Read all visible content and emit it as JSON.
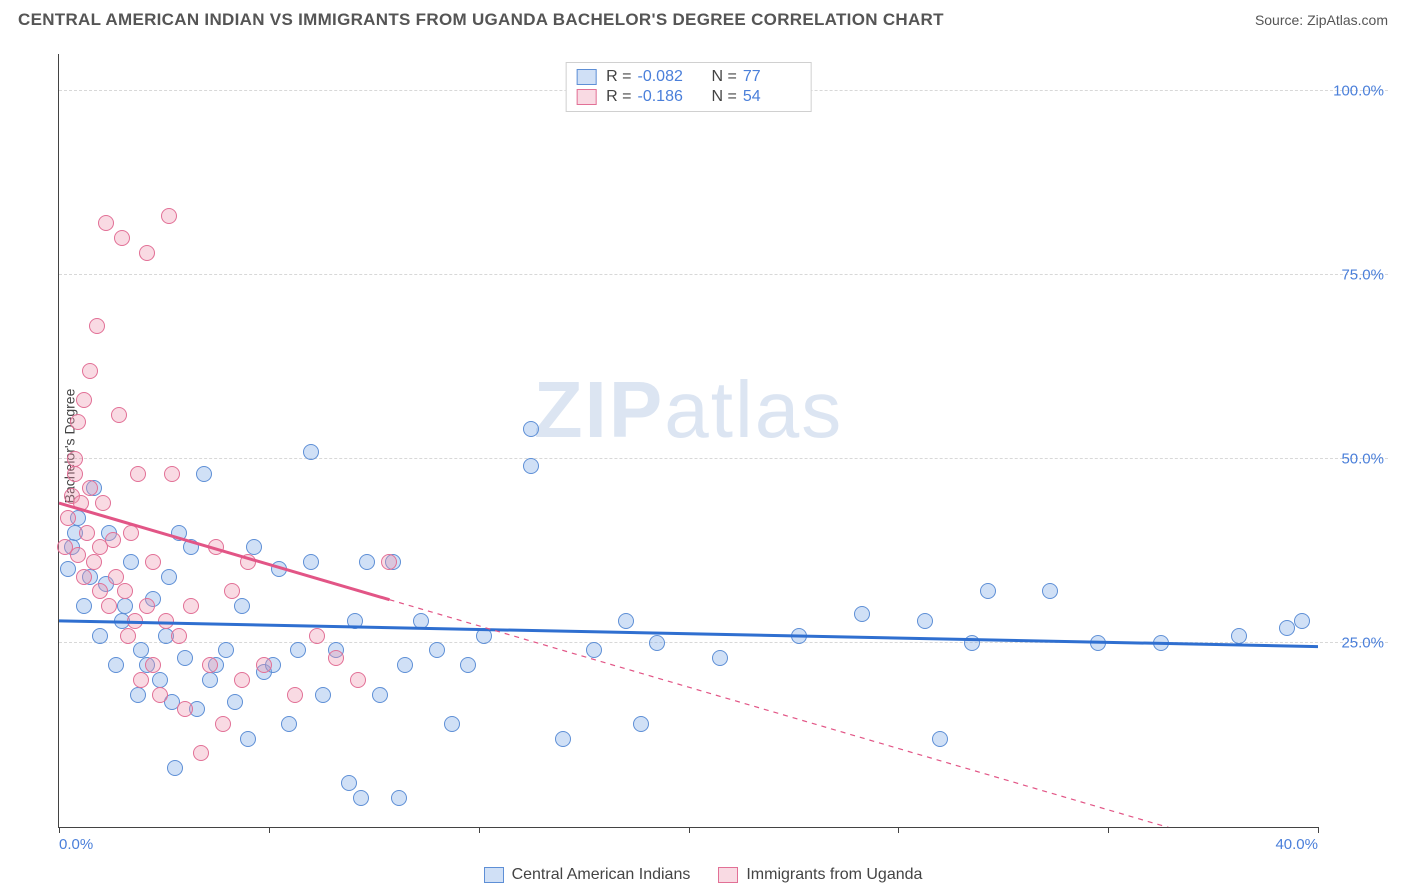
{
  "header": {
    "title": "CENTRAL AMERICAN INDIAN VS IMMIGRANTS FROM UGANDA BACHELOR'S DEGREE CORRELATION CHART",
    "source": "Source: ZipAtlas.com"
  },
  "watermark": {
    "bold": "ZIP",
    "rest": "atlas"
  },
  "chart": {
    "type": "scatter",
    "ylabel": "Bachelor's Degree",
    "background_color": "#ffffff",
    "grid_color": "#d8d8d8",
    "axis_color": "#434343",
    "tick_label_color": "#4a7fda",
    "xlim": [
      0,
      40
    ],
    "ylim": [
      0,
      105
    ],
    "xticks": [
      0,
      6.67,
      13.33,
      20,
      26.67,
      33.33,
      40
    ],
    "xtick_labels": [
      "0.0%",
      "",
      "",
      "",
      "",
      "",
      "40.0%"
    ],
    "ygrid": [
      {
        "y": 25,
        "label": "25.0%"
      },
      {
        "y": 50,
        "label": "50.0%"
      },
      {
        "y": 75,
        "label": "75.0%"
      },
      {
        "y": 100,
        "label": "100.0%"
      }
    ],
    "marker_radius": 8,
    "marker_border_width": 1.5,
    "series": [
      {
        "key": "cai",
        "label": "Central American Indians",
        "fill": "rgba(121,167,230,0.35)",
        "stroke": "#5e8fd6",
        "trend": {
          "color": "#2f6fd0",
          "width": 3,
          "y_at_x0": 28,
          "y_at_xmax": 24.5,
          "solid_until_x": 40
        },
        "stats": {
          "R": "-0.082",
          "N": "77"
        },
        "points": [
          [
            0.3,
            35
          ],
          [
            0.4,
            38
          ],
          [
            0.5,
            40
          ],
          [
            0.6,
            42
          ],
          [
            0.8,
            30
          ],
          [
            1.0,
            34
          ],
          [
            1.1,
            46
          ],
          [
            1.3,
            26
          ],
          [
            1.5,
            33
          ],
          [
            1.6,
            40
          ],
          [
            1.8,
            22
          ],
          [
            2.0,
            28
          ],
          [
            2.1,
            30
          ],
          [
            2.3,
            36
          ],
          [
            2.5,
            18
          ],
          [
            2.6,
            24
          ],
          [
            2.8,
            22
          ],
          [
            3.0,
            31
          ],
          [
            3.2,
            20
          ],
          [
            3.4,
            26
          ],
          [
            3.5,
            34
          ],
          [
            3.6,
            17
          ],
          [
            3.7,
            8
          ],
          [
            3.8,
            40
          ],
          [
            4.0,
            23
          ],
          [
            4.2,
            38
          ],
          [
            4.4,
            16
          ],
          [
            4.6,
            48
          ],
          [
            4.8,
            20
          ],
          [
            5.0,
            22
          ],
          [
            5.3,
            24
          ],
          [
            5.6,
            17
          ],
          [
            5.8,
            30
          ],
          [
            6.0,
            12
          ],
          [
            6.2,
            38
          ],
          [
            6.5,
            21
          ],
          [
            6.8,
            22
          ],
          [
            7.0,
            35
          ],
          [
            7.3,
            14
          ],
          [
            7.6,
            24
          ],
          [
            8.0,
            51
          ],
          [
            8.0,
            36
          ],
          [
            8.4,
            18
          ],
          [
            8.8,
            24
          ],
          [
            9.2,
            6
          ],
          [
            9.6,
            4
          ],
          [
            9.4,
            28
          ],
          [
            9.8,
            36
          ],
          [
            10.2,
            18
          ],
          [
            10.8,
            4
          ],
          [
            10.6,
            36
          ],
          [
            11.0,
            22
          ],
          [
            11.5,
            28
          ],
          [
            12.0,
            24
          ],
          [
            12.5,
            14
          ],
          [
            13.0,
            22
          ],
          [
            13.5,
            26
          ],
          [
            15.0,
            49
          ],
          [
            15.0,
            54
          ],
          [
            16.0,
            12
          ],
          [
            17.0,
            24
          ],
          [
            18.0,
            28
          ],
          [
            18.5,
            14
          ],
          [
            19.0,
            25
          ],
          [
            21.0,
            23
          ],
          [
            23.5,
            26
          ],
          [
            25.5,
            29
          ],
          [
            27.5,
            28
          ],
          [
            28.0,
            12
          ],
          [
            29.0,
            25
          ],
          [
            29.5,
            32
          ],
          [
            31.5,
            32
          ],
          [
            33.0,
            25
          ],
          [
            35.0,
            25
          ],
          [
            37.5,
            26
          ],
          [
            39.0,
            27
          ],
          [
            39.5,
            28
          ]
        ]
      },
      {
        "key": "uga",
        "label": "Immigrants from Uganda",
        "fill": "rgba(238,149,176,0.35)",
        "stroke": "#e27096",
        "trend": {
          "color": "#e25586",
          "width": 3,
          "y_at_x0": 44,
          "y_at_xmax": -6,
          "solid_until_x": 10.5
        },
        "stats": {
          "R": "-0.186",
          "N": "54"
        },
        "points": [
          [
            0.2,
            38
          ],
          [
            0.3,
            42
          ],
          [
            0.4,
            45
          ],
          [
            0.5,
            48
          ],
          [
            0.5,
            50
          ],
          [
            0.6,
            55
          ],
          [
            0.6,
            37
          ],
          [
            0.7,
            44
          ],
          [
            0.8,
            34
          ],
          [
            0.8,
            58
          ],
          [
            0.9,
            40
          ],
          [
            1.0,
            62
          ],
          [
            1.0,
            46
          ],
          [
            1.1,
            36
          ],
          [
            1.2,
            68
          ],
          [
            1.3,
            32
          ],
          [
            1.3,
            38
          ],
          [
            1.4,
            44
          ],
          [
            1.5,
            82
          ],
          [
            1.6,
            30
          ],
          [
            1.7,
            39
          ],
          [
            1.8,
            34
          ],
          [
            1.9,
            56
          ],
          [
            2.0,
            80
          ],
          [
            2.1,
            32
          ],
          [
            2.2,
            26
          ],
          [
            2.3,
            40
          ],
          [
            2.4,
            28
          ],
          [
            2.5,
            48
          ],
          [
            2.6,
            20
          ],
          [
            2.8,
            30
          ],
          [
            2.8,
            78
          ],
          [
            3.0,
            22
          ],
          [
            3.0,
            36
          ],
          [
            3.2,
            18
          ],
          [
            3.4,
            28
          ],
          [
            3.5,
            83
          ],
          [
            3.6,
            48
          ],
          [
            3.8,
            26
          ],
          [
            4.0,
            16
          ],
          [
            4.2,
            30
          ],
          [
            4.5,
            10
          ],
          [
            4.8,
            22
          ],
          [
            5.0,
            38
          ],
          [
            5.2,
            14
          ],
          [
            5.5,
            32
          ],
          [
            5.8,
            20
          ],
          [
            6.0,
            36
          ],
          [
            6.5,
            22
          ],
          [
            7.5,
            18
          ],
          [
            8.2,
            26
          ],
          [
            8.8,
            23
          ],
          [
            9.5,
            20
          ],
          [
            10.5,
            36
          ]
        ]
      }
    ]
  },
  "legend_bottom": [
    {
      "series": "cai"
    },
    {
      "series": "uga"
    }
  ]
}
